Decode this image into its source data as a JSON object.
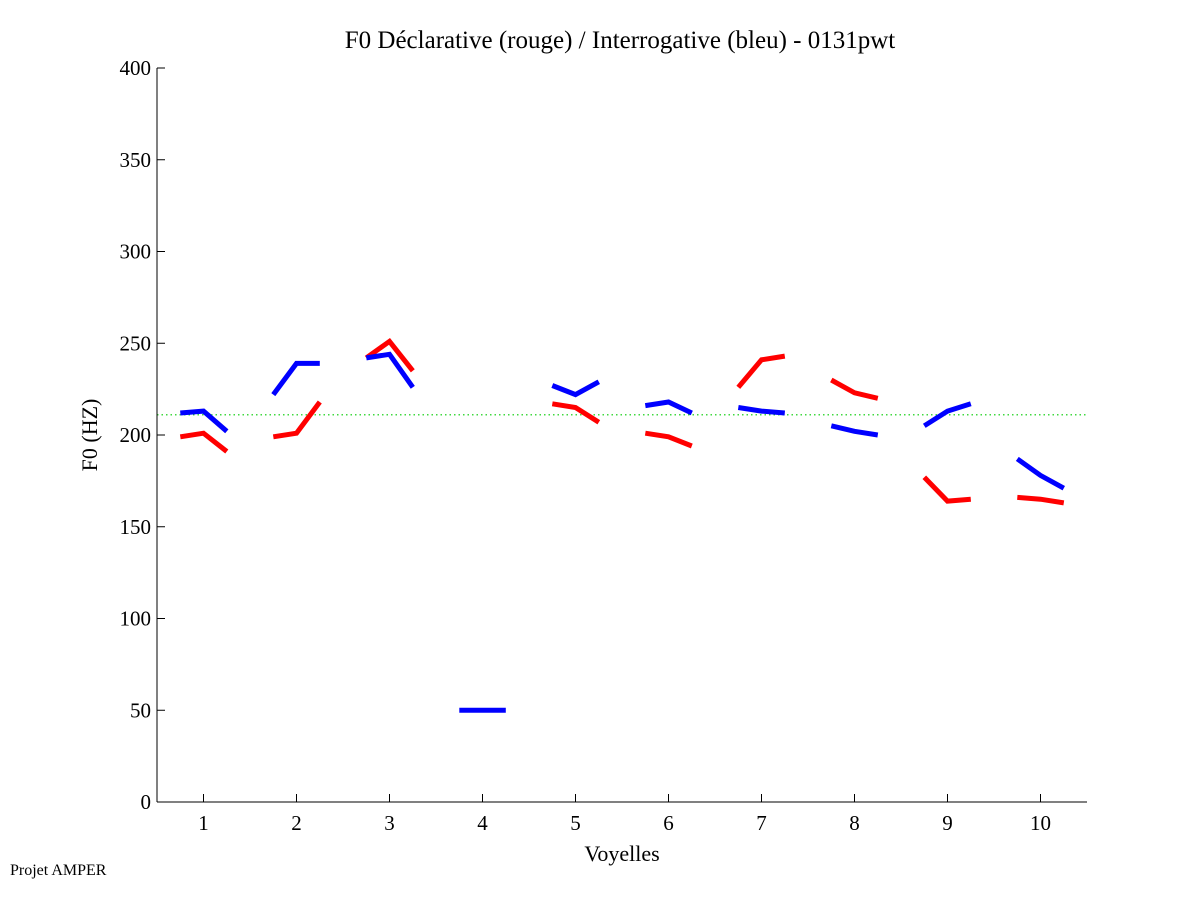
{
  "chart_data": {
    "type": "line",
    "title": "F0 Déclarative (rouge) / Interrogative (bleu) - 0131pwt",
    "xlabel": "Voyelles",
    "ylabel": "F0 (HZ)",
    "xlim": [
      0.5,
      10.5
    ],
    "ylim": [
      0,
      400
    ],
    "x_ticks": [
      1,
      2,
      3,
      4,
      5,
      6,
      7,
      8,
      9,
      10
    ],
    "y_ticks": [
      0,
      50,
      100,
      150,
      200,
      250,
      300,
      350,
      400
    ],
    "reference_line": {
      "y": 211,
      "color": "#00cc00",
      "style": "dotted"
    },
    "grid": false,
    "legend": "none",
    "series": [
      {
        "color": "#ff0000",
        "segments": [
          [
            [
              0.75,
              199
            ],
            [
              1.0,
              201
            ],
            [
              1.25,
              191
            ]
          ],
          [
            [
              1.75,
              199
            ],
            [
              2.0,
              201
            ],
            [
              2.25,
              218
            ]
          ],
          [
            [
              2.75,
              242
            ],
            [
              3.0,
              251
            ],
            [
              3.25,
              235
            ]
          ],
          [
            [
              4.75,
              217
            ],
            [
              5.0,
              215
            ],
            [
              5.25,
              207
            ]
          ],
          [
            [
              5.75,
              201
            ],
            [
              6.0,
              199
            ],
            [
              6.25,
              194
            ]
          ],
          [
            [
              6.75,
              226
            ],
            [
              7.0,
              241
            ],
            [
              7.25,
              243
            ]
          ],
          [
            [
              7.75,
              230
            ],
            [
              8.0,
              223
            ],
            [
              8.25,
              220
            ]
          ],
          [
            [
              8.75,
              177
            ],
            [
              9.0,
              164
            ],
            [
              9.25,
              165
            ]
          ],
          [
            [
              9.75,
              166
            ],
            [
              10.0,
              165
            ],
            [
              10.25,
              163
            ]
          ]
        ]
      },
      {
        "color": "#0000ff",
        "segments": [
          [
            [
              0.75,
              212
            ],
            [
              1.0,
              213
            ],
            [
              1.25,
              202
            ]
          ],
          [
            [
              1.75,
              222
            ],
            [
              2.0,
              239
            ],
            [
              2.25,
              239
            ]
          ],
          [
            [
              2.75,
              242
            ],
            [
              3.0,
              244
            ],
            [
              3.25,
              226
            ]
          ],
          [
            [
              3.75,
              50
            ],
            [
              4.0,
              50
            ],
            [
              4.25,
              50
            ]
          ],
          [
            [
              4.75,
              227
            ],
            [
              5.0,
              222
            ],
            [
              5.25,
              229
            ]
          ],
          [
            [
              5.75,
              216
            ],
            [
              6.0,
              218
            ],
            [
              6.25,
              212
            ]
          ],
          [
            [
              6.75,
              215
            ],
            [
              7.0,
              213
            ],
            [
              7.25,
              212
            ]
          ],
          [
            [
              7.75,
              205
            ],
            [
              8.0,
              202
            ],
            [
              8.25,
              200
            ]
          ],
          [
            [
              8.75,
              205
            ],
            [
              9.0,
              213
            ],
            [
              9.25,
              217
            ]
          ],
          [
            [
              9.75,
              187
            ],
            [
              10.0,
              178
            ],
            [
              10.25,
              171
            ]
          ]
        ]
      }
    ]
  },
  "footer": "Projet AMPER"
}
